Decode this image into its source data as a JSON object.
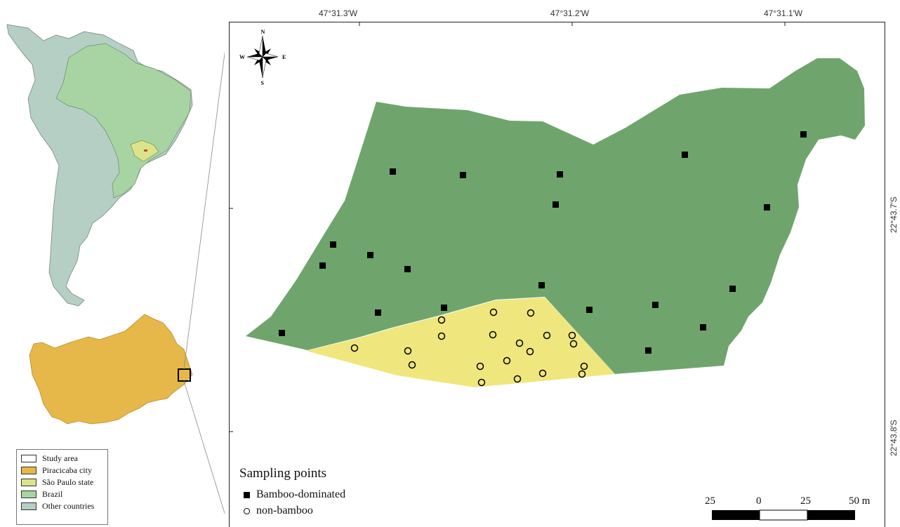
{
  "map": {
    "coordinates": {
      "lon": [
        "47°31.3′W",
        "47°31.2′W",
        "47°31.1′W"
      ],
      "lat": [
        "22°43.7′S",
        "22°43.8′S"
      ]
    },
    "compass": {
      "n": "N",
      "s": "S",
      "e": "E",
      "w": "W"
    },
    "legend": [
      {
        "label": "Study area",
        "color": "#ffffff"
      },
      {
        "label": "Piracicaba city",
        "color": "#e6b84a"
      },
      {
        "label": "São Paulo state",
        "color": "#dbe48a"
      },
      {
        "label": "Brazil",
        "color": "#a8d4a4"
      },
      {
        "label": "Other countries",
        "color": "#b5cfc4"
      }
    ],
    "sampling": {
      "title": "Sampling points",
      "bamboo_label": "Bamboo-dominated",
      "non_bamboo_label": "non-bamboo"
    },
    "scale": {
      "labels": [
        "25",
        "0",
        "25",
        "50 m"
      ]
    },
    "colors": {
      "bamboo_area": "#6fa56d",
      "non_bamboo_area": "#efe67d",
      "other_countries": "#b5cfc4",
      "brazil": "#a8d4a4",
      "sao_paulo": "#dbe48a",
      "piracicaba": "#e6b84a"
    }
  }
}
